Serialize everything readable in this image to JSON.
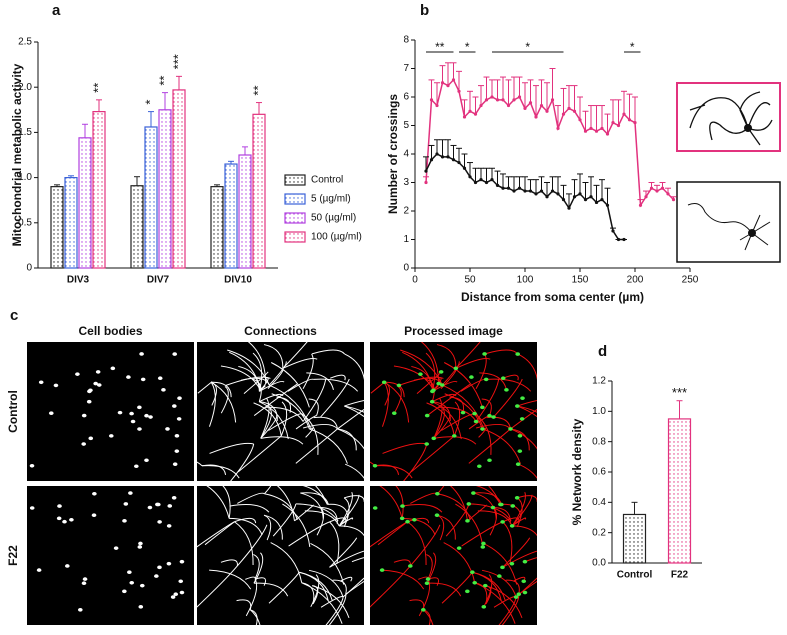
{
  "chart_data": [
    {
      "type": "bar",
      "label": "a",
      "ylabel": "Mitochondrial metabolic activity",
      "categories": [
        "DIV3",
        "DIV7",
        "DIV10"
      ],
      "series": [
        {
          "name": "Control",
          "color": "#222222",
          "values": [
            0.9,
            0.91,
            0.9
          ],
          "errors": [
            0.02,
            0.1,
            0.02
          ],
          "significance": [
            null,
            null,
            null
          ]
        },
        {
          "name": "5 (µg/ml)",
          "color": "#3a62d8",
          "values": [
            1.0,
            1.56,
            1.15
          ],
          "errors": [
            0.02,
            0.17,
            0.03
          ],
          "significance": [
            null,
            "*",
            null
          ]
        },
        {
          "name": "50 (µg/ml)",
          "color": "#b13fe0",
          "values": [
            1.44,
            1.75,
            1.25
          ],
          "errors": [
            0.15,
            0.19,
            0.09
          ],
          "significance": [
            null,
            "**",
            null
          ]
        },
        {
          "name": "100 (µg/ml)",
          "color": "#e2327e",
          "values": [
            1.73,
            1.97,
            1.7
          ],
          "errors": [
            0.13,
            0.15,
            0.13
          ],
          "significance": [
            "**",
            "***",
            "**"
          ]
        }
      ],
      "ylim": [
        0,
        2.5
      ],
      "yticks": [
        0,
        0.5,
        {
          "value": 1,
          "label": "1.0"
        },
        1.5,
        {
          "value": 2,
          "label": "2.0"
        },
        2.5
      ],
      "legend": "right"
    },
    {
      "type": "line",
      "label": "b",
      "ylabel": "Number of crossings",
      "xlabel": "Distance from soma center (µm)",
      "series": [
        {
          "color": "#e2327e",
          "x": [
            10,
            15,
            20,
            25,
            30,
            35,
            40,
            45,
            50,
            55,
            60,
            65,
            70,
            75,
            80,
            85,
            90,
            95,
            100,
            105,
            110,
            115,
            120,
            125,
            130,
            135,
            140,
            145,
            150,
            155,
            160,
            165,
            170,
            175,
            180,
            185,
            190,
            195,
            200,
            205,
            210,
            215,
            220,
            225,
            230,
            235
          ],
          "values": [
            3.0,
            5.9,
            5.7,
            6.5,
            6.4,
            6.6,
            6.2,
            5.3,
            5.5,
            5.4,
            5.7,
            5.9,
            6.0,
            5.9,
            5.9,
            5.7,
            5.9,
            6.0,
            5.6,
            5.8,
            5.3,
            5.7,
            5.5,
            5.9,
            4.9,
            5.4,
            5.6,
            5.5,
            5.2,
            4.8,
            4.9,
            4.8,
            4.9,
            4.7,
            5.1,
            5.0,
            5.4,
            5.2,
            5.1,
            2.2,
            2.5,
            2.8,
            2.7,
            2.8,
            2.6,
            2.4
          ],
          "errors": [
            0.2,
            0.7,
            0.8,
            0.6,
            0.8,
            0.6,
            0.7,
            0.6,
            0.7,
            0.6,
            0.7,
            0.8,
            0.6,
            0.7,
            0.8,
            0.9,
            0.8,
            0.7,
            0.9,
            0.8,
            1.1,
            0.9,
            1.0,
            1.1,
            0.8,
            0.9,
            0.8,
            0.9,
            0.8,
            0.7,
            0.8,
            0.9,
            0.8,
            0.7,
            0.8,
            0.9,
            0.8,
            0.9,
            0.9,
            0.2,
            0.2,
            0.2,
            0.2,
            0.2,
            0.2,
            0.1
          ]
        },
        {
          "color": "#111111",
          "x": [
            10,
            15,
            20,
            25,
            30,
            35,
            40,
            45,
            50,
            55,
            60,
            65,
            70,
            75,
            80,
            85,
            90,
            95,
            100,
            105,
            110,
            115,
            120,
            125,
            130,
            135,
            140,
            145,
            150,
            155,
            160,
            165,
            170,
            175,
            180,
            185,
            190
          ],
          "values": [
            3.4,
            3.8,
            4.0,
            3.9,
            3.9,
            3.8,
            3.7,
            3.5,
            3.2,
            3.0,
            3.1,
            3.0,
            3.1,
            2.9,
            2.8,
            2.8,
            2.7,
            2.8,
            2.7,
            2.7,
            2.6,
            2.7,
            2.5,
            2.7,
            2.6,
            2.4,
            2.1,
            2.5,
            2.6,
            2.4,
            2.5,
            2.3,
            2.4,
            2.2,
            1.3,
            1.0,
            1.0
          ],
          "errors": [
            0.5,
            0.5,
            0.5,
            0.6,
            0.6,
            0.5,
            0.5,
            0.5,
            0.5,
            0.5,
            0.4,
            0.5,
            0.4,
            0.5,
            0.5,
            0.4,
            0.5,
            0.4,
            0.5,
            0.4,
            0.5,
            0.5,
            0.5,
            0.5,
            0.6,
            0.5,
            0.5,
            0.6,
            0.7,
            0.6,
            0.7,
            0.6,
            0.7,
            0.6,
            0.1,
            0.0,
            0.0
          ]
        }
      ],
      "annotations": [
        {
          "text": "**",
          "x": [
            10,
            35
          ]
        },
        {
          "text": "*",
          "x": [
            40,
            55
          ]
        },
        {
          "text": "*",
          "x": [
            70,
            135
          ]
        },
        {
          "text": "*",
          "x": [
            190,
            205
          ]
        }
      ],
      "xlim": [
        0,
        250
      ],
      "xticks": [
        0,
        50,
        100,
        150,
        200,
        250
      ],
      "ylim": [
        0,
        8
      ],
      "yticks": [
        0,
        1,
        2,
        3,
        4,
        5,
        6,
        7,
        8
      ]
    },
    {
      "type": "bar",
      "label": "d",
      "ylabel": "% Network density",
      "categories": [
        "Control",
        "F22"
      ],
      "values": [
        0.32,
        0.95
      ],
      "errors": [
        0.08,
        0.12
      ],
      "significance": [
        null,
        "***"
      ],
      "colors": [
        "#222222",
        "#e2327e"
      ],
      "ylim": [
        0,
        1.2
      ],
      "yticks": [
        {
          "value": 0,
          "label": "0.0"
        },
        0.2,
        0.4,
        0.6,
        0.8,
        {
          "value": 1,
          "label": "1.0"
        },
        1.2
      ]
    }
  ],
  "panel_c": {
    "label": "c",
    "column_headers": [
      "Cell bodies",
      "Connections",
      "Processed image"
    ],
    "row_labels": [
      "Control",
      "F22"
    ]
  }
}
